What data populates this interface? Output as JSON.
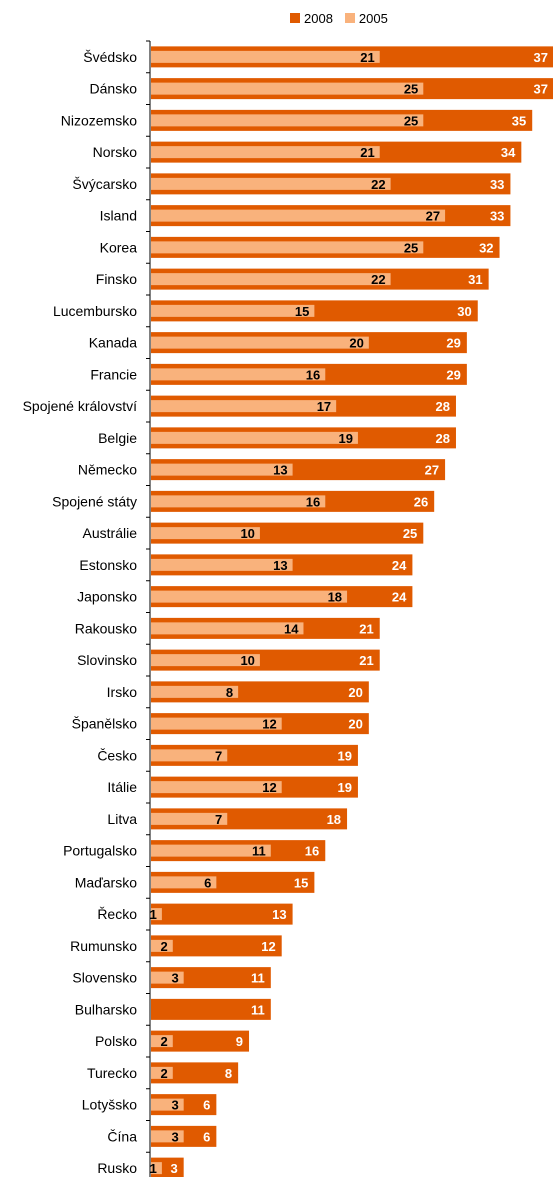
{
  "chart_data": {
    "type": "bar",
    "orientation": "horizontal",
    "categories": [
      "Švédsko",
      "Dánsko",
      "Nizozemsko",
      "Norsko",
      "Švýcarsko",
      "Island",
      "Korea",
      "Finsko",
      "Lucembursko",
      "Kanada",
      "Francie",
      "Spojené království",
      "Belgie",
      "Německo",
      "Spojené státy",
      "Austrálie",
      "Estonsko",
      "Japonsko",
      "Rakousko",
      "Slovinsko",
      "Irsko",
      "Španělsko",
      "Česko",
      "Itálie",
      "Litva",
      "Portugalsko",
      "Maďarsko",
      "Řecko",
      "Rumunsko",
      "Slovensko",
      "Bulharsko",
      "Polsko",
      "Turecko",
      "Lotyšsko",
      "Čína",
      "Rusko"
    ],
    "series": [
      {
        "name": "2008",
        "color": "#e05a00",
        "label_color": "#ffffff",
        "values": [
          37,
          37,
          35,
          34,
          33,
          33,
          32,
          31,
          30,
          29,
          29,
          28,
          28,
          27,
          26,
          25,
          24,
          24,
          21,
          21,
          20,
          20,
          19,
          19,
          18,
          16,
          15,
          13,
          12,
          11,
          11,
          9,
          8,
          6,
          6,
          3
        ]
      },
      {
        "name": "2005",
        "color": "#f9b27c",
        "label_color": "#000000",
        "values": [
          21,
          25,
          25,
          21,
          22,
          27,
          25,
          22,
          15,
          20,
          16,
          17,
          19,
          13,
          16,
          10,
          13,
          18,
          14,
          10,
          8,
          12,
          7,
          12,
          7,
          11,
          6,
          1,
          2,
          3,
          null,
          2,
          2,
          3,
          3,
          1
        ]
      }
    ],
    "legend": {
      "position": "top-right",
      "items": [
        {
          "label": "2008",
          "color": "#e05a00"
        },
        {
          "label": "2005",
          "color": "#f9b27c"
        }
      ]
    },
    "xlim": [
      0,
      37
    ],
    "grid": false
  }
}
